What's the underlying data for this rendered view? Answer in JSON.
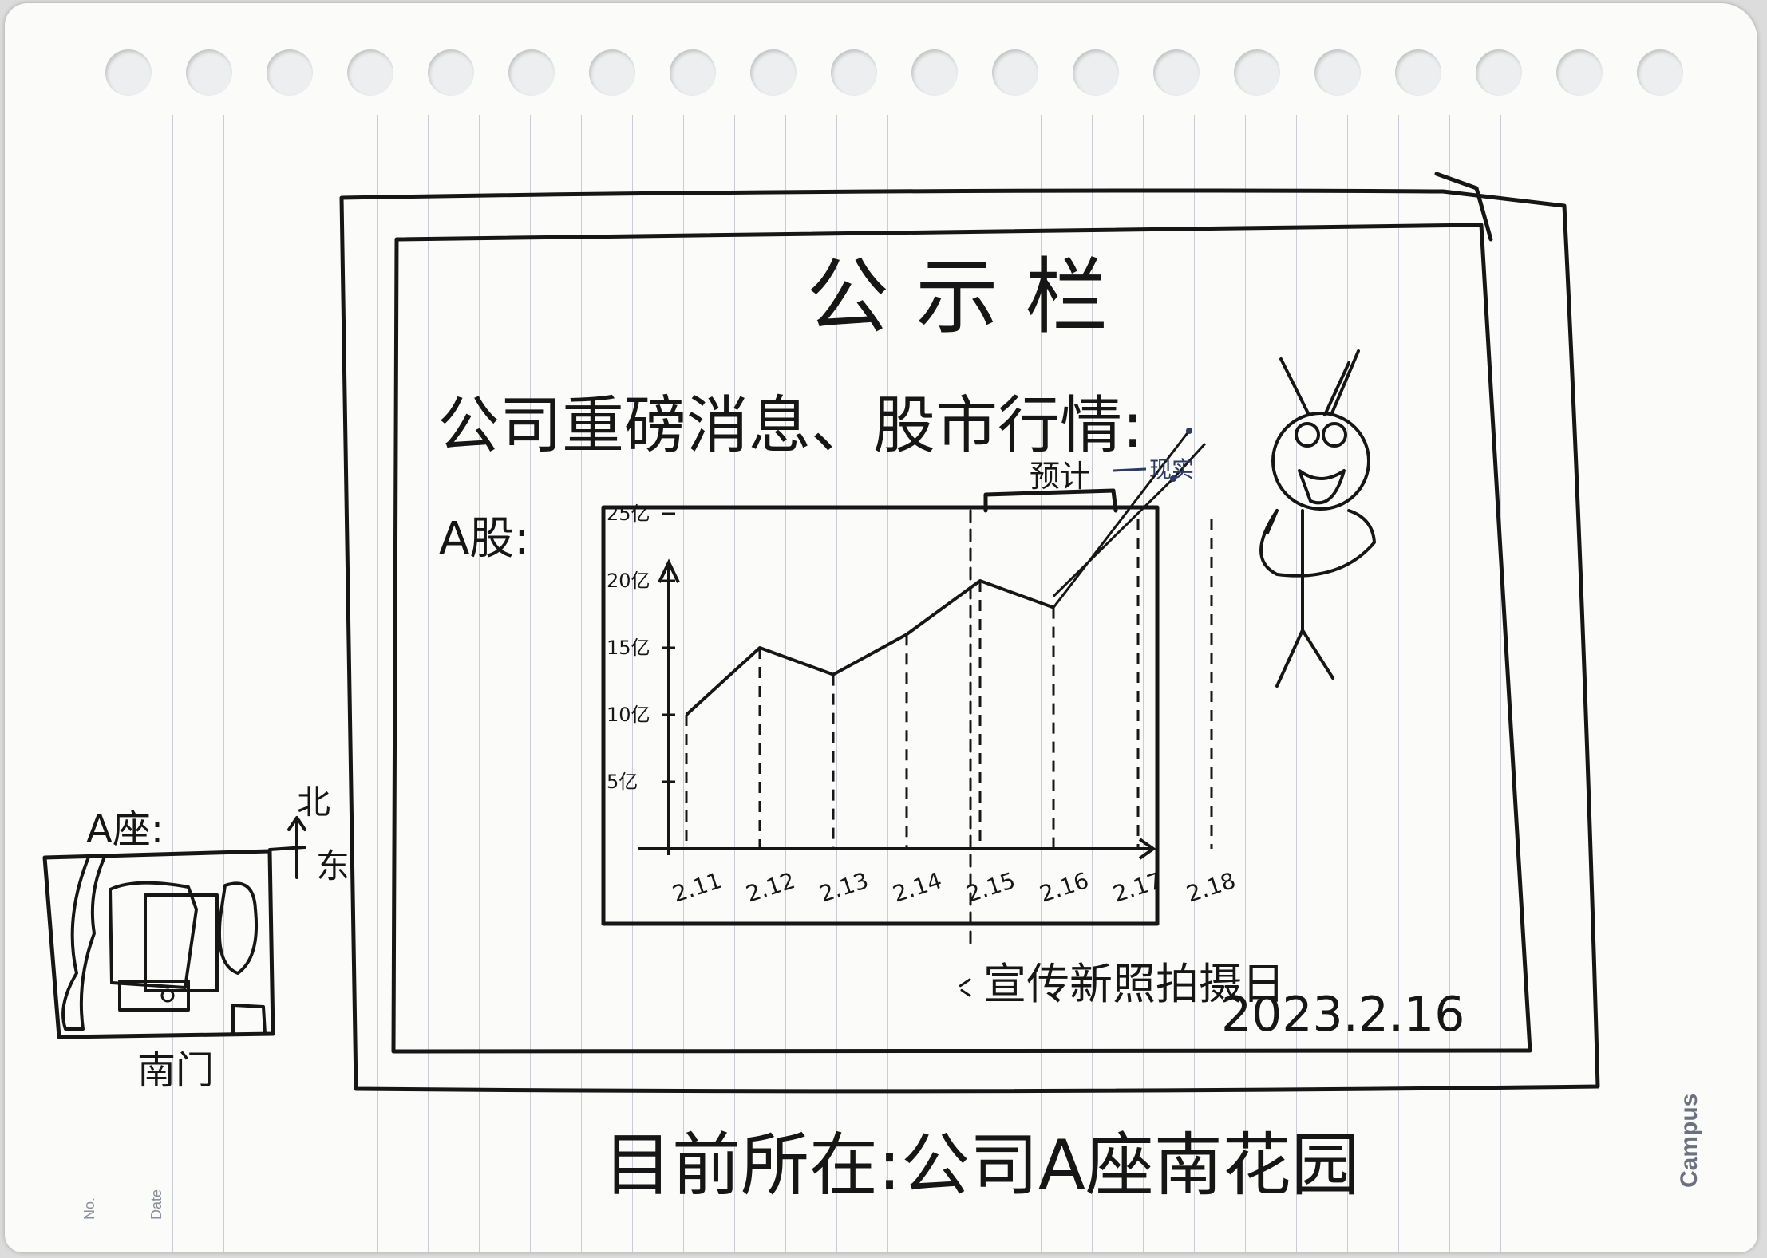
{
  "board": {
    "title": "公 示 栏",
    "subtitle": "公司重磅消息、股市行情:",
    "stock_label": "A股:"
  },
  "chart_data": {
    "type": "line",
    "x_tick_labels": [
      "2.11",
      "2.12",
      "2.13",
      "2.14",
      "2.15",
      "2.16",
      "2.17",
      "2.18"
    ],
    "y_tick_labels": [
      "5亿",
      "10亿",
      "15亿",
      "20亿",
      "25亿"
    ],
    "x": [
      "2.11",
      "2.12",
      "2.13",
      "2.14",
      "2.15",
      "2.16"
    ],
    "y": [
      "10亿",
      "15亿",
      "13亿",
      "16亿",
      "20亿",
      "18亿"
    ],
    "forecast_label": "预计",
    "actual_label": "现实"
  },
  "annotation": {
    "photo_note": "宣传新照拍摄日",
    "photo_date": "2023.2.16"
  },
  "map": {
    "title": "A座:",
    "north_label": "北",
    "east_label": "东",
    "gate_label": "南门"
  },
  "location_caption": "目前所在:公司A座南花园",
  "notebook": {
    "no_label": "No.",
    "date_label": "Date",
    "brand": "Campus"
  },
  "colors": {
    "ink": "#161616",
    "blue_ink": "#2c3a66",
    "rule_lines": "#c9cdd3"
  }
}
